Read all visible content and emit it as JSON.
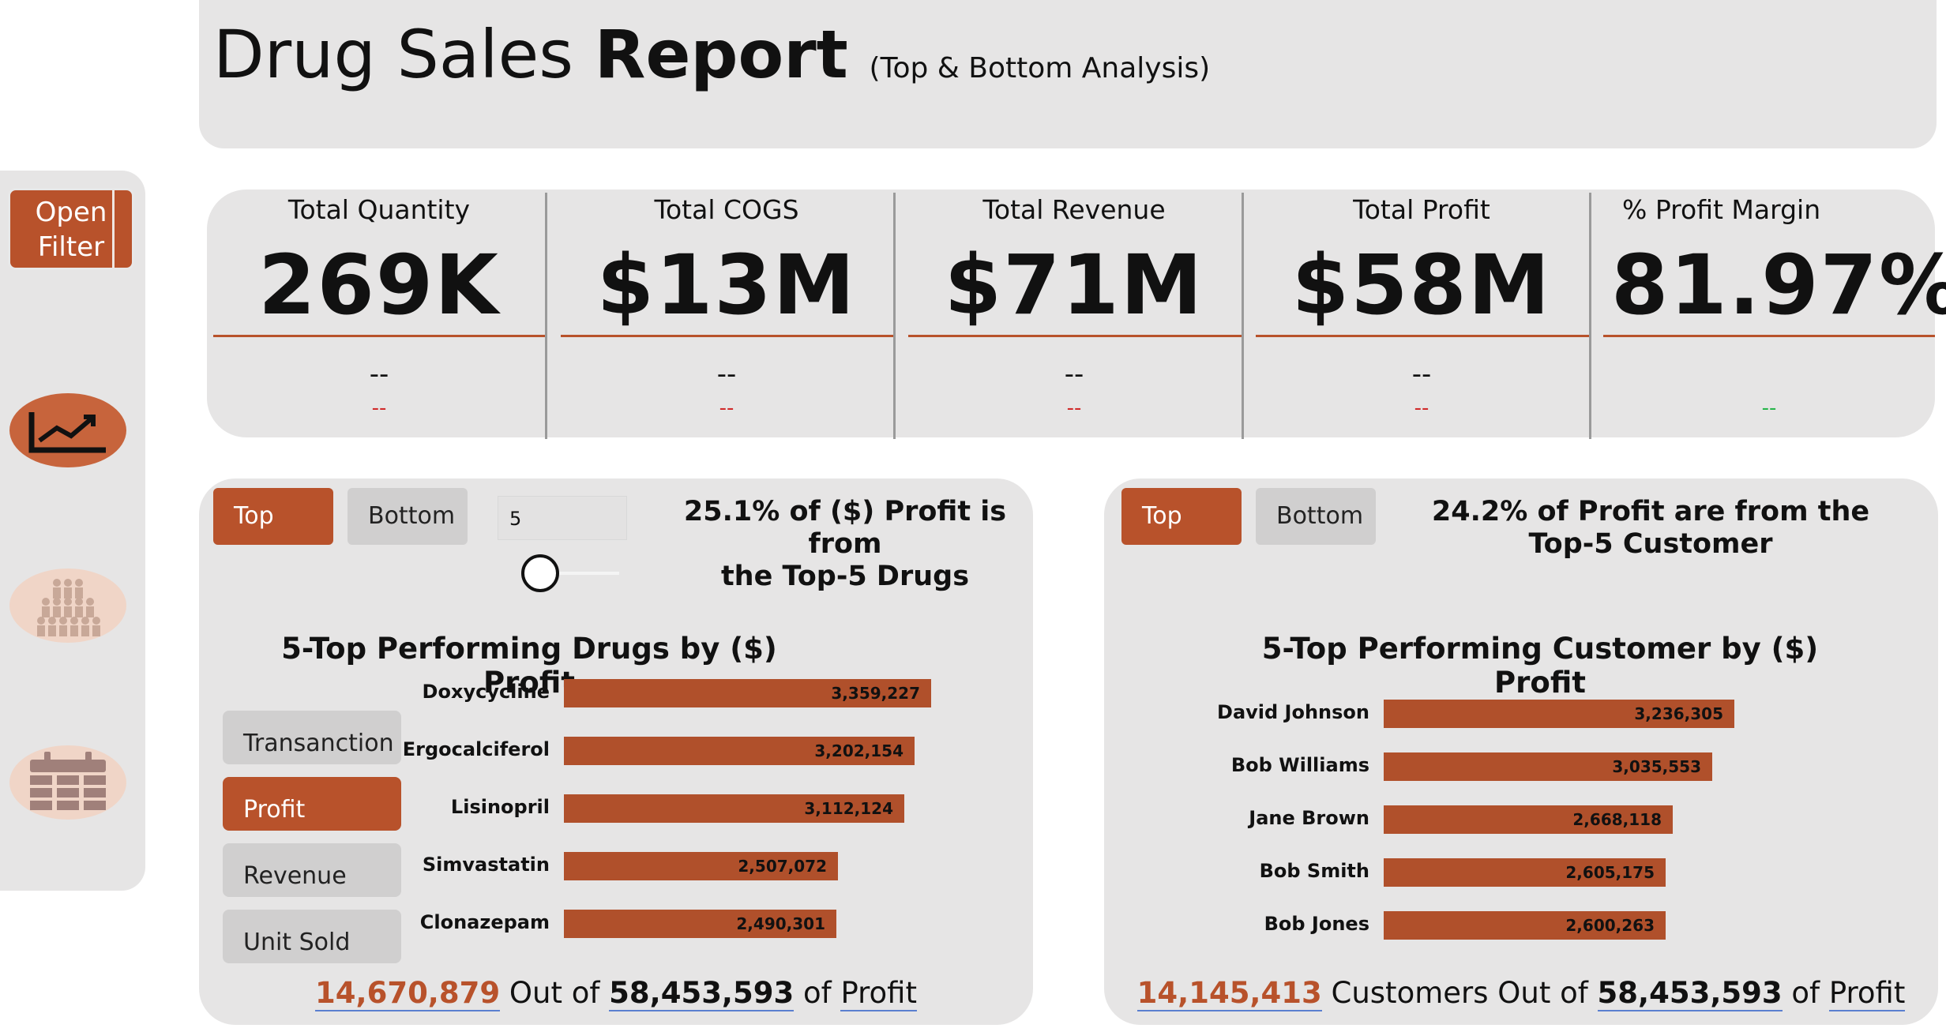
{
  "header": {
    "title_light": "Drug Sales",
    "title_bold": "Report",
    "title_sub": "(Top & Bottom Analysis)"
  },
  "sidebar": {
    "open_filter": "Open\nFilter",
    "icons": [
      "trend-chart-icon",
      "people-group-icon",
      "calendar-icon"
    ]
  },
  "kpis": [
    {
      "label": "Total Quantity",
      "value": "269K",
      "dash1": "--",
      "dash2": "--",
      "dash2_color": "#d12a2a"
    },
    {
      "label": "Total COGS",
      "value": "$13M",
      "dash1": "--",
      "dash2": "--",
      "dash2_color": "#d12a2a"
    },
    {
      "label": "Total Revenue",
      "value": "$71M",
      "dash1": "--",
      "dash2": "--",
      "dash2_color": "#d12a2a"
    },
    {
      "label": "Total Profit",
      "value": "$58M",
      "dash1": "--",
      "dash2": "--",
      "dash2_color": "#d12a2a"
    },
    {
      "label": "% Profit Margin",
      "value": "81.97%",
      "dash1": "",
      "dash2": "--",
      "dash2_color": "#27b54a"
    }
  ],
  "drugs_panel": {
    "toggle_top": "Top",
    "toggle_bottom": "Bottom",
    "top_n_value": "5",
    "slider_value": 5,
    "summary_line1": "25.1% of ($) Profit is from",
    "summary_line2": "the Top-5 Drugs",
    "chart_title": "5-Top Performing Drugs by ($) Profit",
    "metric_buttons": [
      "Transanction",
      "Profit",
      "Revenue",
      "Unit Sold"
    ],
    "active_metric": "Profit",
    "footer_highlight": "14,670,879",
    "footer_mid": "Out of",
    "footer_total": "58,453,593",
    "footer_of": "of",
    "footer_end": "Profit"
  },
  "customers_panel": {
    "toggle_top": "Top",
    "toggle_bottom": "Bottom",
    "summary_line1": "24.2% of Profit are from the",
    "summary_line2": "Top-5 Customer",
    "chart_title": "5-Top Performing Customer by ($) Profit",
    "footer_highlight": "14,145,413",
    "footer_mid": "Customers Out of",
    "footer_total": "58,453,593",
    "footer_of": "of",
    "footer_end": "Profit"
  },
  "chart_data": [
    {
      "type": "bar",
      "orientation": "horizontal",
      "title": "5-Top Performing Drugs by ($) Profit",
      "categories": [
        "Doxycycline",
        "Ergocalciferol",
        "Lisinopril",
        "Simvastatin",
        "Clonazepam"
      ],
      "values": [
        3359227,
        3202154,
        3112124,
        2507072,
        2490301
      ],
      "labels": [
        "3,359,227",
        "3,202,154",
        "3,112,124",
        "2,507,072",
        "2,490,301"
      ],
      "color": "#b0502b"
    },
    {
      "type": "bar",
      "orientation": "horizontal",
      "title": "5-Top Performing Customer by ($) Profit",
      "categories": [
        "David Johnson",
        "Bob Williams",
        "Jane Brown",
        "Bob Smith",
        "Bob Jones"
      ],
      "values": [
        3236305,
        3035553,
        2668118,
        2605175,
        2600263
      ],
      "labels": [
        "3,236,305",
        "3,035,553",
        "2,668,118",
        "2,605,175",
        "2,600,263"
      ],
      "color": "#b0502b"
    }
  ]
}
